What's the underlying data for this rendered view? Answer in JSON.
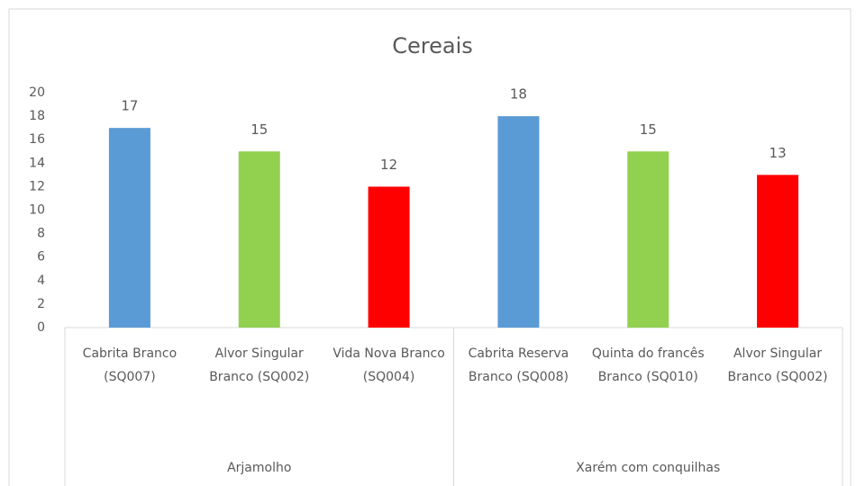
{
  "chart_data": {
    "type": "bar",
    "title": "Cereais",
    "groups": [
      {
        "name": "Arjamolho",
        "categories": [
          "Cabrita Branco (SQ007)",
          "Alvor Singular Branco (SQ002)",
          "Vida Nova Branco (SQ004)"
        ],
        "values": [
          17,
          15,
          12
        ]
      },
      {
        "name": "Xarém com conquilhas",
        "categories": [
          "Cabrita Reserva Branco (SQ008)",
          "Quinta do francês Branco (SQ010)",
          "Alvor Singular Branco (SQ002)"
        ],
        "values": [
          18,
          15,
          13
        ]
      }
    ],
    "colors": [
      "#5b9bd5",
      "#92d050",
      "#ff0000"
    ],
    "ylim": [
      0,
      20
    ],
    "yticks": [
      0,
      2,
      4,
      6,
      8,
      10,
      12,
      14,
      16,
      18,
      20
    ],
    "grid": false
  }
}
